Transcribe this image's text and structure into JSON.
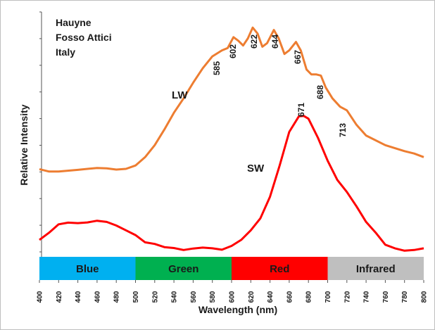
{
  "chart_data": {
    "type": "line",
    "sample": [
      "Hauyne",
      "Fosso Attici",
      "Italy"
    ],
    "xlabel": "Wavelength (nm)",
    "ylabel": "Relative Intensity",
    "xlim": [
      400,
      800
    ],
    "ylim": [
      0,
      100
    ],
    "x_ticks": [
      "400",
      "420",
      "440",
      "460",
      "480",
      "500",
      "520",
      "540",
      "560",
      "580",
      "600",
      "620",
      "640",
      "660",
      "680",
      "700",
      "720",
      "740",
      "760",
      "780",
      "800"
    ],
    "y_tick_labels_shown": false,
    "grid": false,
    "bands": [
      {
        "label": "Blue",
        "from": 400,
        "to": 500,
        "color": "#00b0f0"
      },
      {
        "label": "Green",
        "from": 500,
        "to": 600,
        "color": "#00b050"
      },
      {
        "label": "Red",
        "from": 600,
        "to": 700,
        "color": "#ff0000"
      },
      {
        "label": "Infrared",
        "from": 700,
        "to": 800,
        "color": "#bfbfbf"
      }
    ],
    "series": [
      {
        "name": "LW",
        "color": "#ed7d31",
        "points": [
          [
            400,
            34.5
          ],
          [
            410,
            33.5
          ],
          [
            420,
            33.5
          ],
          [
            440,
            34.2
          ],
          [
            460,
            35
          ],
          [
            470,
            34.8
          ],
          [
            480,
            34.3
          ],
          [
            490,
            34.6
          ],
          [
            500,
            36
          ],
          [
            510,
            39.5
          ],
          [
            520,
            44.5
          ],
          [
            530,
            51
          ],
          [
            540,
            58
          ],
          [
            550,
            64
          ],
          [
            560,
            70.5
          ],
          [
            570,
            76.5
          ],
          [
            580,
            81.5
          ],
          [
            590,
            84
          ],
          [
            596,
            85
          ],
          [
            602,
            89.5
          ],
          [
            607,
            88
          ],
          [
            612,
            86
          ],
          [
            617,
            89
          ],
          [
            622,
            93.5
          ],
          [
            627,
            91
          ],
          [
            632,
            85.5
          ],
          [
            637,
            87
          ],
          [
            644,
            92.5
          ],
          [
            649,
            89
          ],
          [
            655,
            82.5
          ],
          [
            660,
            84
          ],
          [
            667,
            87.5
          ],
          [
            672,
            84
          ],
          [
            678,
            76
          ],
          [
            683,
            74
          ],
          [
            688,
            74
          ],
          [
            693,
            73.5
          ],
          [
            698,
            68.5
          ],
          [
            705,
            64
          ],
          [
            713,
            60.5
          ],
          [
            720,
            59
          ],
          [
            730,
            53
          ],
          [
            740,
            48.5
          ],
          [
            760,
            44.5
          ],
          [
            780,
            42
          ],
          [
            790,
            41
          ],
          [
            800,
            39.5
          ]
        ],
        "peak_labels": [
          "585",
          "602",
          "622",
          "644",
          "667",
          "688",
          "713"
        ]
      },
      {
        "name": "SW",
        "color": "#ff0000",
        "points": [
          [
            400,
            5
          ],
          [
            410,
            8
          ],
          [
            420,
            11.5
          ],
          [
            430,
            12.2
          ],
          [
            440,
            12
          ],
          [
            450,
            12.3
          ],
          [
            460,
            13
          ],
          [
            470,
            12.5
          ],
          [
            480,
            11
          ],
          [
            490,
            9
          ],
          [
            500,
            7
          ],
          [
            510,
            4
          ],
          [
            520,
            3.3
          ],
          [
            530,
            2
          ],
          [
            540,
            1.6
          ],
          [
            550,
            0.8
          ],
          [
            560,
            1.4
          ],
          [
            570,
            1.8
          ],
          [
            580,
            1.5
          ],
          [
            590,
            0.9
          ],
          [
            600,
            2.5
          ],
          [
            610,
            5
          ],
          [
            620,
            9
          ],
          [
            630,
            14
          ],
          [
            640,
            23
          ],
          [
            650,
            36
          ],
          [
            660,
            50
          ],
          [
            670,
            56.5
          ],
          [
            675,
            56.7
          ],
          [
            680,
            55.5
          ],
          [
            690,
            47.5
          ],
          [
            700,
            38
          ],
          [
            710,
            30
          ],
          [
            720,
            25
          ],
          [
            730,
            19
          ],
          [
            740,
            12.5
          ],
          [
            750,
            8
          ],
          [
            760,
            3
          ],
          [
            770,
            1.5
          ],
          [
            780,
            0.5
          ],
          [
            790,
            0.8
          ],
          [
            800,
            1.5
          ]
        ],
        "peak_labels": [
          "671"
        ]
      }
    ]
  }
}
